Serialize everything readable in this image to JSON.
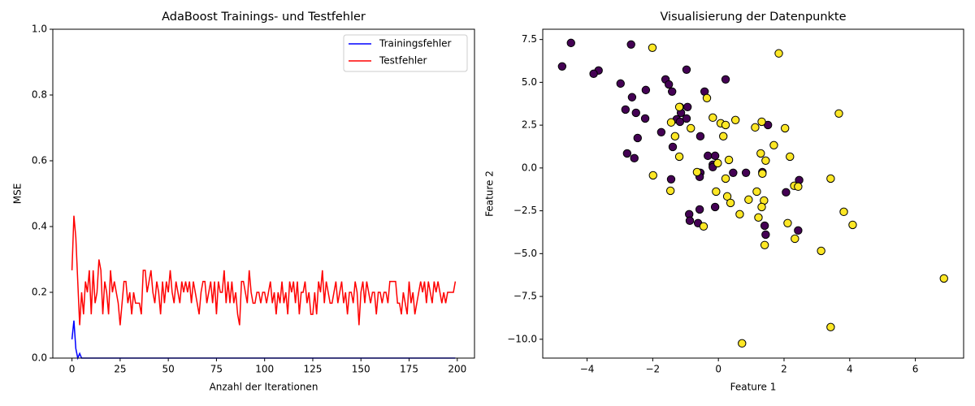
{
  "chart_data": [
    {
      "type": "line",
      "title": "AdaBoost Trainings- und Testfehler",
      "xlabel": "Anzahl der Iterationen",
      "ylabel": "MSE",
      "legend": "upper right",
      "x": [
        0,
        1,
        2,
        3,
        4,
        5,
        6,
        7,
        8,
        9,
        10,
        11,
        12,
        13,
        14,
        15,
        16,
        17,
        18,
        19,
        20,
        21,
        22,
        23,
        24,
        25,
        26,
        27,
        28,
        29,
        30,
        31,
        32,
        33,
        34,
        35,
        36,
        37,
        38,
        39,
        40,
        41,
        42,
        43,
        44,
        45,
        46,
        47,
        48,
        49,
        50,
        51,
        52,
        53,
        54,
        55,
        56,
        57,
        58,
        59,
        60,
        61,
        62,
        63,
        64,
        65,
        66,
        67,
        68,
        69,
        70,
        71,
        72,
        73,
        74,
        75,
        76,
        77,
        78,
        79,
        80,
        81,
        82,
        83,
        84,
        85,
        86,
        87,
        88,
        89,
        90,
        91,
        92,
        93,
        94,
        95,
        96,
        97,
        98,
        99,
        100,
        101,
        102,
        103,
        104,
        105,
        106,
        107,
        108,
        109,
        110,
        111,
        112,
        113,
        114,
        115,
        116,
        117,
        118,
        119,
        120,
        121,
        122,
        123,
        124,
        125,
        126,
        127,
        128,
        129,
        130,
        131,
        132,
        133,
        134,
        135,
        136,
        137,
        138,
        139,
        140,
        141,
        142,
        143,
        144,
        145,
        146,
        147,
        148,
        149,
        150,
        151,
        152,
        153,
        154,
        155,
        156,
        157,
        158,
        159,
        160,
        161,
        162,
        163,
        164,
        165,
        166,
        167,
        168,
        169,
        170,
        171,
        172,
        173,
        174,
        175,
        176,
        177,
        178,
        179,
        180,
        181,
        182,
        183,
        184,
        185,
        186,
        187,
        188,
        189,
        190,
        191,
        192,
        193,
        194,
        195,
        196,
        197,
        198,
        199
      ],
      "series": [
        {
          "name": "Trainingsfehler",
          "color": "#0000ff",
          "values": [
            0.057,
            0.114,
            0.029,
            0,
            0.014,
            0,
            0,
            0,
            0,
            0,
            0,
            0,
            0,
            0,
            0,
            0,
            0,
            0,
            0,
            0,
            0,
            0,
            0,
            0,
            0,
            0,
            0,
            0,
            0,
            0,
            0,
            0,
            0,
            0,
            0,
            0,
            0,
            0,
            0,
            0,
            0,
            0,
            0,
            0,
            0,
            0,
            0,
            0,
            0,
            0,
            0,
            0,
            0,
            0,
            0,
            0,
            0,
            0,
            0,
            0,
            0,
            0,
            0,
            0,
            0,
            0,
            0,
            0,
            0,
            0,
            0,
            0,
            0,
            0,
            0,
            0,
            0,
            0,
            0,
            0,
            0,
            0,
            0,
            0,
            0,
            0,
            0,
            0,
            0,
            0,
            0,
            0,
            0,
            0,
            0,
            0,
            0,
            0,
            0,
            0,
            0,
            0,
            0,
            0,
            0,
            0,
            0,
            0,
            0,
            0,
            0,
            0,
            0,
            0,
            0,
            0,
            0,
            0,
            0,
            0,
            0,
            0,
            0,
            0,
            0,
            0,
            0,
            0,
            0,
            0,
            0,
            0,
            0,
            0,
            0,
            0,
            0,
            0,
            0,
            0,
            0,
            0,
            0,
            0,
            0,
            0,
            0,
            0,
            0,
            0,
            0,
            0,
            0,
            0,
            0,
            0,
            0,
            0,
            0,
            0,
            0,
            0,
            0,
            0,
            0,
            0,
            0,
            0,
            0,
            0,
            0,
            0,
            0,
            0,
            0,
            0,
            0,
            0,
            0,
            0,
            0,
            0,
            0,
            0,
            0,
            0,
            0,
            0,
            0,
            0,
            0,
            0,
            0,
            0,
            0,
            0,
            0,
            0,
            0,
            0
          ]
        },
        {
          "name": "Testfehler",
          "color": "#ff0000",
          "values": [
            0.267,
            0.433,
            0.367,
            0.233,
            0.1,
            0.2,
            0.133,
            0.233,
            0.2,
            0.267,
            0.133,
            0.267,
            0.167,
            0.2,
            0.3,
            0.267,
            0.133,
            0.233,
            0.2,
            0.133,
            0.267,
            0.2,
            0.233,
            0.2,
            0.167,
            0.1,
            0.167,
            0.233,
            0.233,
            0.167,
            0.2,
            0.133,
            0.2,
            0.167,
            0.167,
            0.167,
            0.133,
            0.267,
            0.267,
            0.2,
            0.233,
            0.267,
            0.2,
            0.167,
            0.233,
            0.2,
            0.133,
            0.233,
            0.167,
            0.233,
            0.2,
            0.267,
            0.2,
            0.167,
            0.233,
            0.2,
            0.167,
            0.233,
            0.2,
            0.233,
            0.2,
            0.233,
            0.167,
            0.233,
            0.2,
            0.167,
            0.133,
            0.2,
            0.233,
            0.233,
            0.167,
            0.2,
            0.233,
            0.167,
            0.233,
            0.133,
            0.233,
            0.2,
            0.2,
            0.267,
            0.167,
            0.233,
            0.167,
            0.233,
            0.167,
            0.2,
            0.133,
            0.1,
            0.233,
            0.233,
            0.2,
            0.167,
            0.267,
            0.2,
            0.167,
            0.167,
            0.2,
            0.2,
            0.167,
            0.2,
            0.2,
            0.167,
            0.2,
            0.233,
            0.167,
            0.2,
            0.133,
            0.2,
            0.167,
            0.233,
            0.167,
            0.2,
            0.133,
            0.233,
            0.2,
            0.233,
            0.167,
            0.233,
            0.133,
            0.2,
            0.2,
            0.233,
            0.167,
            0.2,
            0.133,
            0.133,
            0.2,
            0.133,
            0.233,
            0.2,
            0.267,
            0.167,
            0.233,
            0.2,
            0.167,
            0.167,
            0.2,
            0.233,
            0.167,
            0.2,
            0.233,
            0.167,
            0.2,
            0.133,
            0.2,
            0.2,
            0.167,
            0.233,
            0.2,
            0.1,
            0.2,
            0.233,
            0.167,
            0.233,
            0.2,
            0.167,
            0.2,
            0.2,
            0.133,
            0.2,
            0.2,
            0.167,
            0.2,
            0.2,
            0.167,
            0.233,
            0.233,
            0.233,
            0.233,
            0.167,
            0.167,
            0.133,
            0.2,
            0.167,
            0.133,
            0.233,
            0.167,
            0.2,
            0.133,
            0.167,
            0.2,
            0.233,
            0.2,
            0.233,
            0.167,
            0.233,
            0.2,
            0.167,
            0.233,
            0.2,
            0.233,
            0.2,
            0.167,
            0.2,
            0.167,
            0.2,
            0.2,
            0.2,
            0.2,
            0.233
          ]
        }
      ],
      "xlim": [
        -9.95,
        208.95
      ],
      "xticks": [
        0,
        25,
        50,
        75,
        100,
        125,
        150,
        175,
        200
      ],
      "ylim": [
        0,
        1
      ],
      "yticks": [
        {
          "value": 0,
          "label": "0.0"
        },
        {
          "value": 0.2,
          "label": "0.2"
        },
        {
          "value": 0.4,
          "label": "0.4"
        },
        {
          "value": 0.6,
          "label": "0.6"
        },
        {
          "value": 0.8,
          "label": "0.8"
        },
        {
          "value": 1,
          "label": "1.0"
        }
      ]
    },
    {
      "type": "scatter",
      "title": "Visualisierung der Datenpunkte",
      "xlabel": "Feature 1",
      "ylabel": "Feature 2",
      "edgecolor": "#000000",
      "x": [
        -4.76,
        -4.49,
        -3.65,
        -3.8,
        -2.98,
        -2.66,
        -2.63,
        -2.83,
        -2.51,
        -2.21,
        -2.23,
        -2.78,
        -2.56,
        -2.46,
        -1.61,
        -1.51,
        -1.41,
        -1.74,
        -0.97,
        -0.94,
        -1.17,
        -1.14,
        -1.27,
        -1.17,
        -0.97,
        -1.39,
        -1.44,
        -0.55,
        -0.42,
        0.22,
        -0.32,
        -0.1,
        -0.17,
        -0.17,
        -0.55,
        -0.57,
        0.45,
        0.84,
        1.34,
        1.51,
        -0.89,
        -0.87,
        -0.57,
        -0.62,
        -0.1,
        1.41,
        1.44,
        2.43,
        2.06,
        2.46,
        -2.01,
        1.84,
        3.67,
        -1.19,
        -0.35,
        -1.44,
        -0.84,
        -1.32,
        -1.19,
        -0.17,
        0.07,
        0.22,
        0.52,
        1.12,
        1.32,
        2.03,
        1.69,
        0.15,
        1.29,
        1.44,
        2.18,
        0.32,
        -0.02,
        -1.99,
        -0.65,
        0.22,
        1.34,
        2.31,
        2.43,
        3.42,
        -1.46,
        -0.07,
        0.27,
        0.37,
        0.92,
        1.17,
        1.39,
        1.32,
        0.65,
        1.22,
        2.11,
        -0.45,
        3.82,
        4.09,
        2.33,
        1.41,
        3.13,
        6.87,
        3.42,
        0.72
      ],
      "values": [
        5.93,
        7.3,
        5.69,
        5.5,
        4.93,
        7.21,
        4.13,
        3.41,
        3.22,
        4.55,
        2.89,
        0.85,
        0.57,
        1.75,
        5.17,
        4.88,
        4.46,
        2.09,
        5.74,
        3.56,
        3.56,
        3.22,
        2.84,
        2.7,
        2.89,
        1.23,
        -0.66,
        1.85,
        4.46,
        5.17,
        0.71,
        0.71,
        0.19,
        0.05,
        -0.28,
        -0.52,
        -0.28,
        -0.28,
        -0.24,
        2.51,
        -2.7,
        -3.08,
        -2.42,
        -3.22,
        -2.28,
        -3.37,
        -3.89,
        -3.65,
        -1.42,
        -0.71,
        7.02,
        6.69,
        3.18,
        3.56,
        4.08,
        2.66,
        2.32,
        1.85,
        0.66,
        2.94,
        2.61,
        2.51,
        2.8,
        2.37,
        2.7,
        2.32,
        1.33,
        1.85,
        0.85,
        0.43,
        0.66,
        0.47,
        0.28,
        -0.43,
        -0.24,
        -0.62,
        -0.33,
        -1.04,
        -1.09,
        -0.62,
        -1.33,
        -1.38,
        -1.66,
        -2.04,
        -1.85,
        -1.38,
        -1.9,
        -2.28,
        -2.7,
        -2.89,
        -3.22,
        -3.41,
        -2.56,
        -3.32,
        -4.13,
        -4.5,
        -4.84,
        -6.45,
        -9.29,
        -10.24
      ],
      "colors": [
        "#440154",
        "#440154",
        "#440154",
        "#440154",
        "#440154",
        "#440154",
        "#440154",
        "#440154",
        "#440154",
        "#440154",
        "#440154",
        "#440154",
        "#440154",
        "#440154",
        "#440154",
        "#440154",
        "#440154",
        "#440154",
        "#440154",
        "#440154",
        "#440154",
        "#440154",
        "#440154",
        "#440154",
        "#440154",
        "#440154",
        "#440154",
        "#440154",
        "#440154",
        "#440154",
        "#440154",
        "#440154",
        "#440154",
        "#440154",
        "#440154",
        "#440154",
        "#440154",
        "#440154",
        "#440154",
        "#440154",
        "#440154",
        "#440154",
        "#440154",
        "#440154",
        "#440154",
        "#440154",
        "#440154",
        "#440154",
        "#440154",
        "#440154",
        "#fde725",
        "#fde725",
        "#fde725",
        "#fde725",
        "#fde725",
        "#fde725",
        "#fde725",
        "#fde725",
        "#fde725",
        "#fde725",
        "#fde725",
        "#fde725",
        "#fde725",
        "#fde725",
        "#fde725",
        "#fde725",
        "#fde725",
        "#fde725",
        "#fde725",
        "#fde725",
        "#fde725",
        "#fde725",
        "#fde725",
        "#fde725",
        "#fde725",
        "#fde725",
        "#fde725",
        "#fde725",
        "#fde725",
        "#fde725",
        "#fde725",
        "#fde725",
        "#fde725",
        "#fde725",
        "#fde725",
        "#fde725",
        "#fde725",
        "#fde725",
        "#fde725",
        "#fde725",
        "#fde725",
        "#fde725",
        "#fde725",
        "#fde725",
        "#fde725",
        "#fde725",
        "#fde725",
        "#fde725",
        "#fde725",
        "#fde725"
      ],
      "xlim": [
        -5.35,
        7.47
      ],
      "xticks": [
        {
          "value": -4,
          "label": "−4"
        },
        {
          "value": -2,
          "label": "−2"
        },
        0,
        2,
        4,
        6
      ],
      "ylim": [
        -11.1,
        8.1
      ],
      "yticks": [
        {
          "value": -10,
          "label": "−10.0"
        },
        {
          "value": -7.5,
          "label": "−7.5"
        },
        {
          "value": -5,
          "label": "−5.0"
        },
        {
          "value": -2.5,
          "label": "−2.5"
        },
        {
          "value": 0,
          "label": "0.0"
        },
        {
          "value": 2.5,
          "label": "2.5"
        },
        {
          "value": 5,
          "label": "5.0"
        },
        7.5
      ]
    }
  ]
}
